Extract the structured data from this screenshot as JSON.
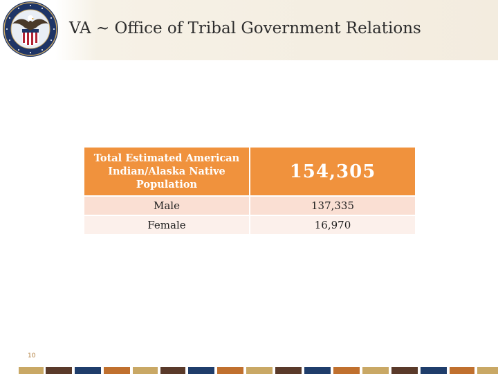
{
  "header": {
    "title": "VA ~ Office of Tribal Government Relations",
    "seal_text": "DEPARTMENT OF VETERANS AFFAIRS · UNITED STATES OF AMERICA"
  },
  "table": {
    "header_row": {
      "label": "Total Estimated American Indian/Alaska Native Population",
      "value": "154,305"
    },
    "rows": [
      {
        "label": "Male",
        "value": "137,335"
      },
      {
        "label": "Female",
        "value": "16,970"
      }
    ]
  },
  "footer": {
    "page_number": "10"
  },
  "colors": {
    "header_cell": "#f0923d",
    "row_odd": "#fadfd3",
    "row_even": "#fcf0eb",
    "stripe_palette": [
      "#c9a865",
      "#5a3a2a",
      "#c0702e",
      "#1f3d6b",
      "#c9a865",
      "#5a3a2a",
      "#c0702e",
      "#1f3d6b"
    ]
  }
}
